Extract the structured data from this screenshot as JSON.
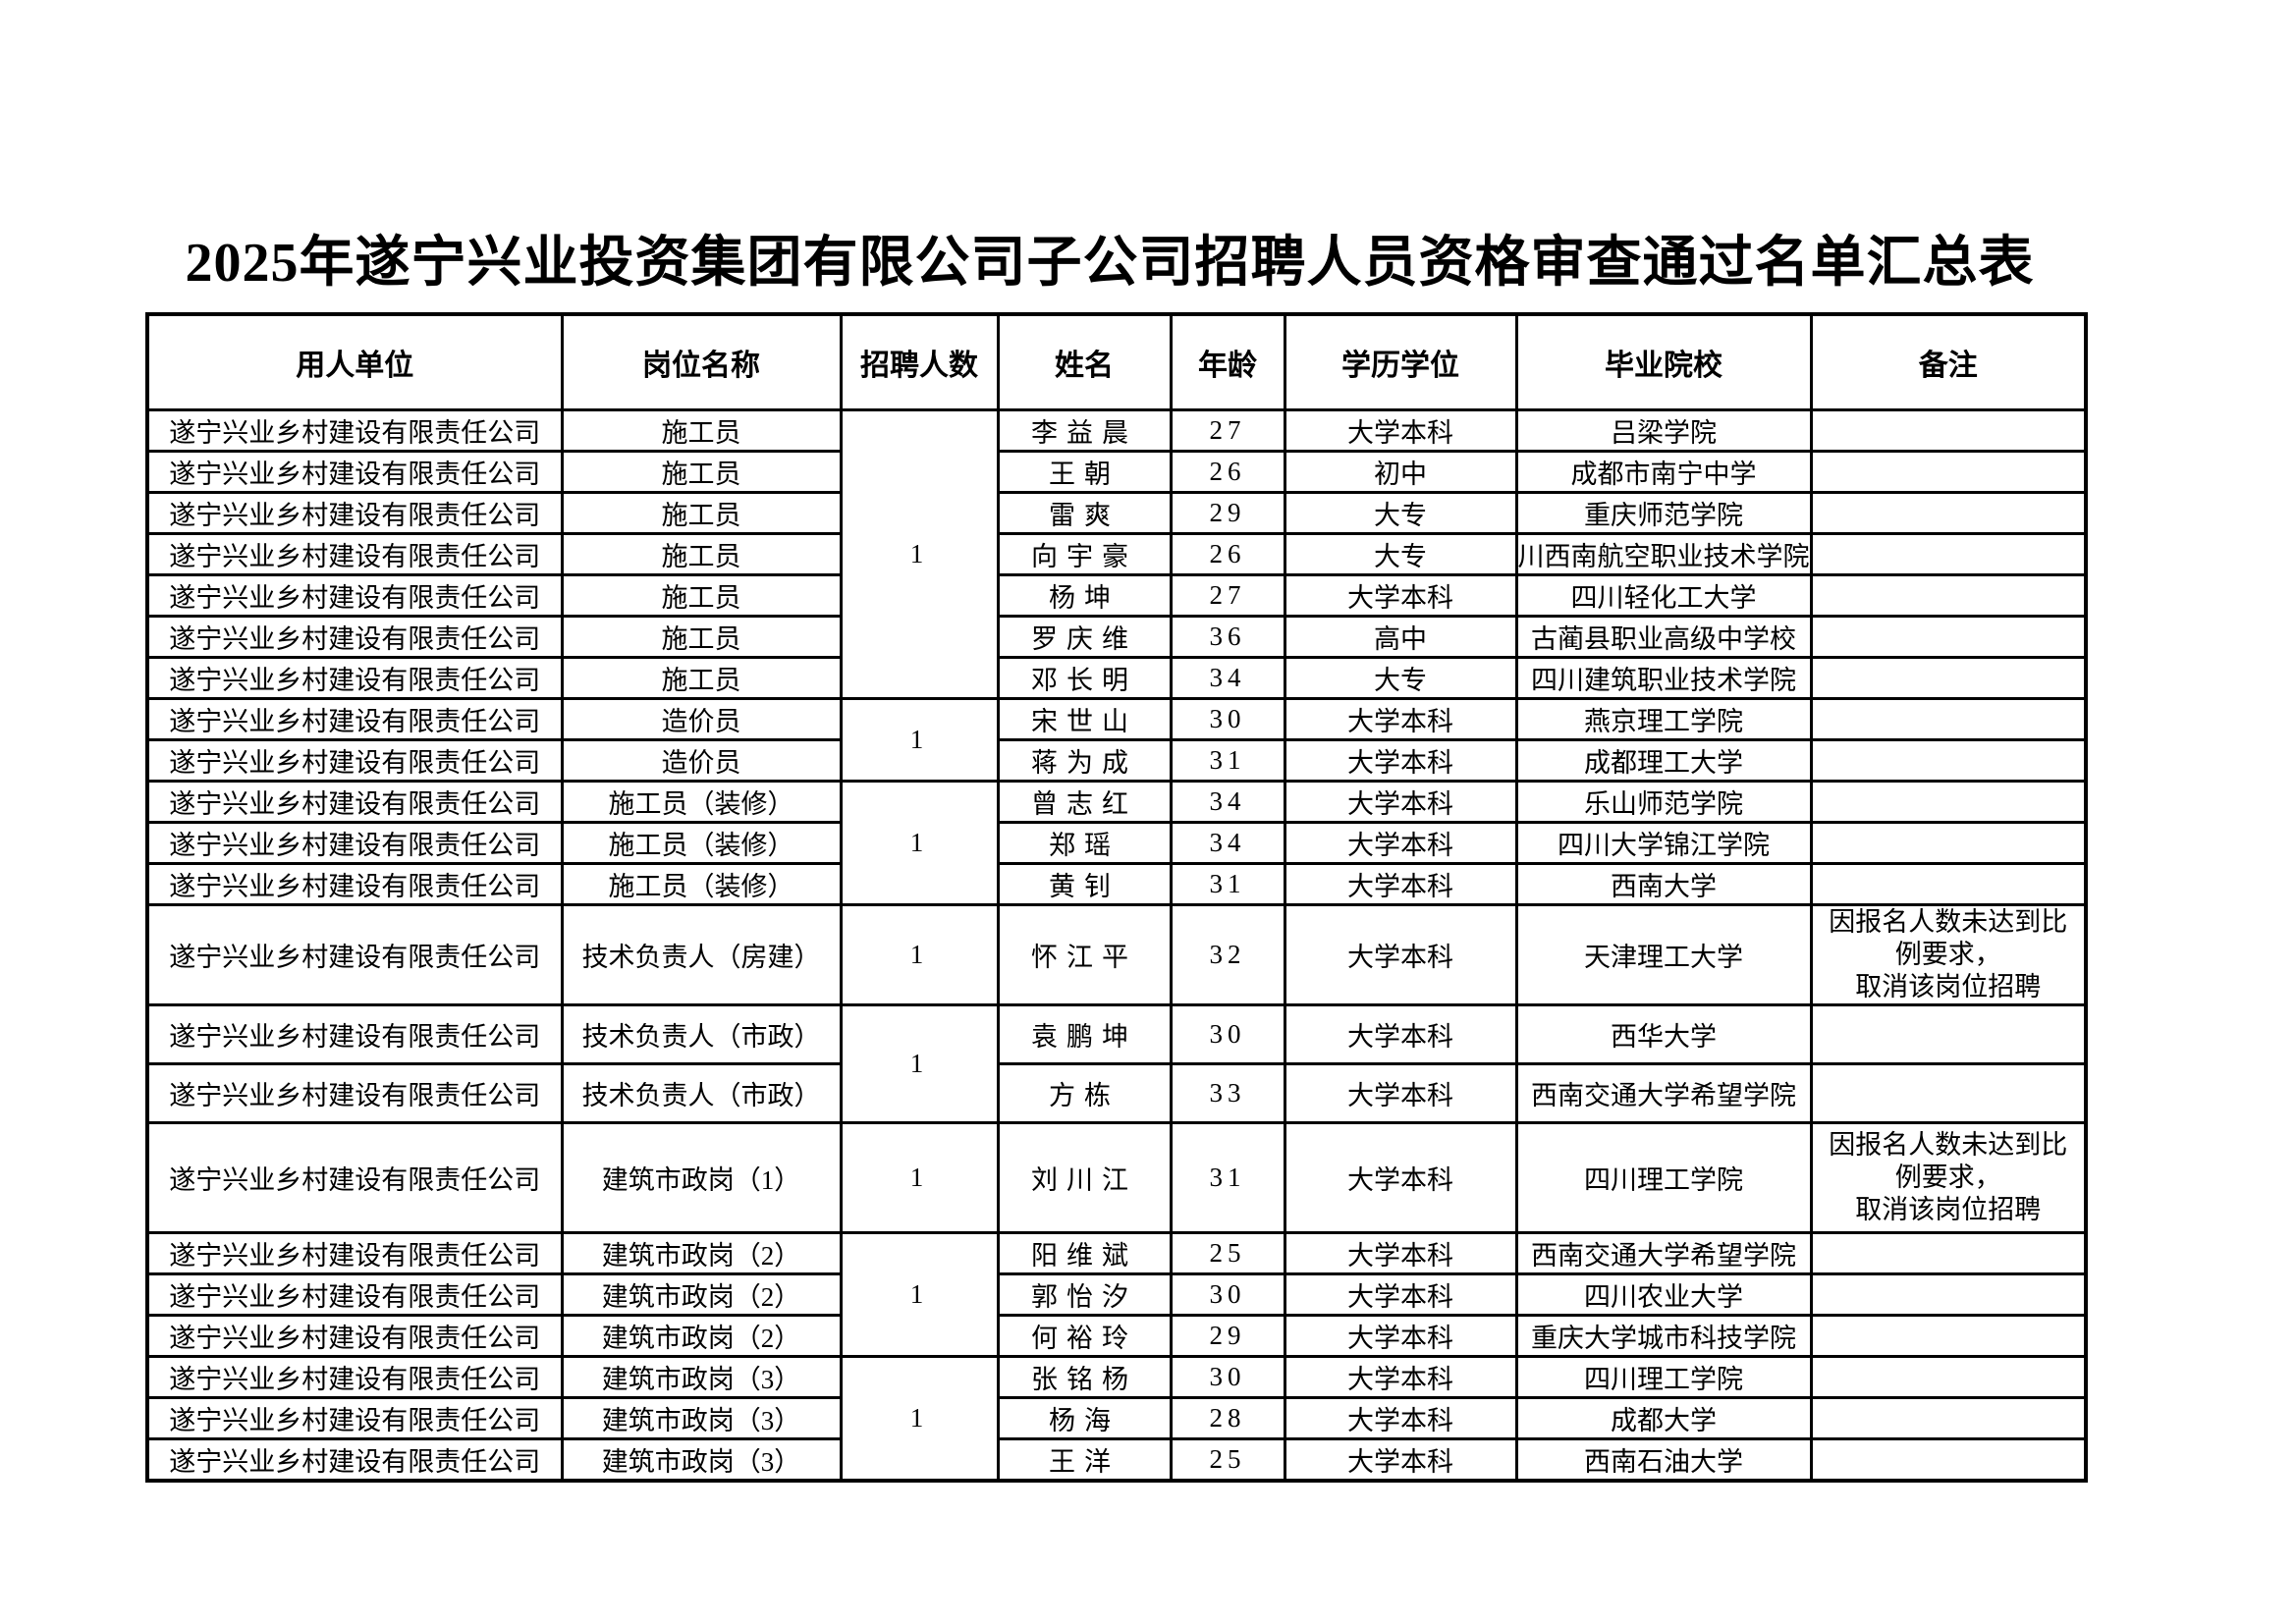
{
  "title": "2025年遂宁兴业投资集团有限公司子公司招聘人员资格审查通过名单汇总表",
  "colors": {
    "background": "#ffffff",
    "text": "#000000",
    "border": "#000000"
  },
  "table": {
    "headers": [
      "用人单位",
      "岗位名称",
      "招聘人数",
      "姓名",
      "年龄",
      "学历学位",
      "毕业院校",
      "备注"
    ],
    "cancel_note": "因报名人数未达到比\n例要求，\n取消该岗位招聘",
    "rows": [
      {
        "employer": "遂宁兴业乡村建设有限责任公司",
        "position": "施工员",
        "headcount": "1",
        "headcount_span": 7,
        "name": "李益晨",
        "age": "27",
        "education": "大学本科",
        "school": "吕梁学院",
        "note": ""
      },
      {
        "employer": "遂宁兴业乡村建设有限责任公司",
        "position": "施工员",
        "headcount": null,
        "name": "王朝",
        "age": "26",
        "education": "初中",
        "school": "成都市南宁中学",
        "note": ""
      },
      {
        "employer": "遂宁兴业乡村建设有限责任公司",
        "position": "施工员",
        "headcount": null,
        "name": "雷爽",
        "age": "29",
        "education": "大专",
        "school": "重庆师范学院",
        "note": ""
      },
      {
        "employer": "遂宁兴业乡村建设有限责任公司",
        "position": "施工员",
        "headcount": null,
        "name": "向宇豪",
        "age": "26",
        "education": "大专",
        "school": "川西南航空职业技术学院",
        "note": "",
        "school_overflow": true
      },
      {
        "employer": "遂宁兴业乡村建设有限责任公司",
        "position": "施工员",
        "headcount": null,
        "name": "杨坤",
        "age": "27",
        "education": "大学本科",
        "school": "四川轻化工大学",
        "note": ""
      },
      {
        "employer": "遂宁兴业乡村建设有限责任公司",
        "position": "施工员",
        "headcount": null,
        "name": "罗庆维",
        "age": "36",
        "education": "高中",
        "school": "古蔺县职业高级中学校",
        "note": ""
      },
      {
        "employer": "遂宁兴业乡村建设有限责任公司",
        "position": "施工员",
        "headcount": null,
        "name": "邓长明",
        "age": "34",
        "education": "大专",
        "school": "四川建筑职业技术学院",
        "note": ""
      },
      {
        "employer": "遂宁兴业乡村建设有限责任公司",
        "position": "造价员",
        "headcount": "1",
        "headcount_span": 2,
        "name": "宋世山",
        "age": "30",
        "education": "大学本科",
        "school": "燕京理工学院",
        "note": ""
      },
      {
        "employer": "遂宁兴业乡村建设有限责任公司",
        "position": "造价员",
        "headcount": null,
        "name": "蒋为成",
        "age": "31",
        "education": "大学本科",
        "school": "成都理工大学",
        "note": ""
      },
      {
        "employer": "遂宁兴业乡村建设有限责任公司",
        "position": "施工员（装修）",
        "headcount": "1",
        "headcount_span": 3,
        "name": "曾志红",
        "age": "34",
        "education": "大学本科",
        "school": "乐山师范学院",
        "note": ""
      },
      {
        "employer": "遂宁兴业乡村建设有限责任公司",
        "position": "施工员（装修）",
        "headcount": null,
        "name": "郑瑶",
        "age": "34",
        "education": "大学本科",
        "school": "四川大学锦江学院",
        "note": ""
      },
      {
        "employer": "遂宁兴业乡村建设有限责任公司",
        "position": "施工员（装修）",
        "headcount": null,
        "name": "黄钊",
        "age": "31",
        "education": "大学本科",
        "school": "西南大学",
        "note": ""
      },
      {
        "employer": "遂宁兴业乡村建设有限责任公司",
        "position": "技术负责人（房建）",
        "headcount": "1",
        "headcount_span": 1,
        "name": "怀江平",
        "age": "32",
        "education": "大学本科",
        "school": "天津理工大学",
        "note": "因报名人数未达到比\n例要求，\n取消该岗位招聘",
        "size": "tall-a"
      },
      {
        "employer": "遂宁兴业乡村建设有限责任公司",
        "position": "技术负责人（市政）",
        "headcount": "1",
        "headcount_span": 2,
        "name": "袁鹏坤",
        "age": "30",
        "education": "大学本科",
        "school": "西华大学",
        "note": "",
        "size": "mid"
      },
      {
        "employer": "遂宁兴业乡村建设有限责任公司",
        "position": "技术负责人（市政）",
        "headcount": null,
        "name": "方栋",
        "age": "33",
        "education": "大学本科",
        "school": "西南交通大学希望学院",
        "note": "",
        "size": "mid"
      },
      {
        "employer": "遂宁兴业乡村建设有限责任公司",
        "position": "建筑市政岗（1）",
        "headcount": "1",
        "headcount_span": 1,
        "name": "刘川江",
        "age": "31",
        "education": "大学本科",
        "school": "四川理工学院",
        "note": "因报名人数未达到比\n例要求，\n取消该岗位招聘",
        "size": "tall-b"
      },
      {
        "employer": "遂宁兴业乡村建设有限责任公司",
        "position": "建筑市政岗（2）",
        "headcount": "1",
        "headcount_span": 3,
        "name": "阳维斌",
        "age": "25",
        "education": "大学本科",
        "school": "西南交通大学希望学院",
        "note": ""
      },
      {
        "employer": "遂宁兴业乡村建设有限责任公司",
        "position": "建筑市政岗（2）",
        "headcount": null,
        "name": "郭怡汐",
        "age": "30",
        "education": "大学本科",
        "school": "四川农业大学",
        "note": ""
      },
      {
        "employer": "遂宁兴业乡村建设有限责任公司",
        "position": "建筑市政岗（2）",
        "headcount": null,
        "name": "何裕玲",
        "age": "29",
        "education": "大学本科",
        "school": "重庆大学城市科技学院",
        "note": ""
      },
      {
        "employer": "遂宁兴业乡村建设有限责任公司",
        "position": "建筑市政岗（3）",
        "headcount": "1",
        "headcount_span": 3,
        "name": "张铭杨",
        "age": "30",
        "education": "大学本科",
        "school": "四川理工学院",
        "note": ""
      },
      {
        "employer": "遂宁兴业乡村建设有限责任公司",
        "position": "建筑市政岗（3）",
        "headcount": null,
        "name": "杨海",
        "age": "28",
        "education": "大学本科",
        "school": "成都大学",
        "note": ""
      },
      {
        "employer": "遂宁兴业乡村建设有限责任公司",
        "position": "建筑市政岗（3）",
        "headcount": null,
        "name": "王洋",
        "age": "25",
        "education": "大学本科",
        "school": "西南石油大学",
        "note": ""
      }
    ]
  }
}
